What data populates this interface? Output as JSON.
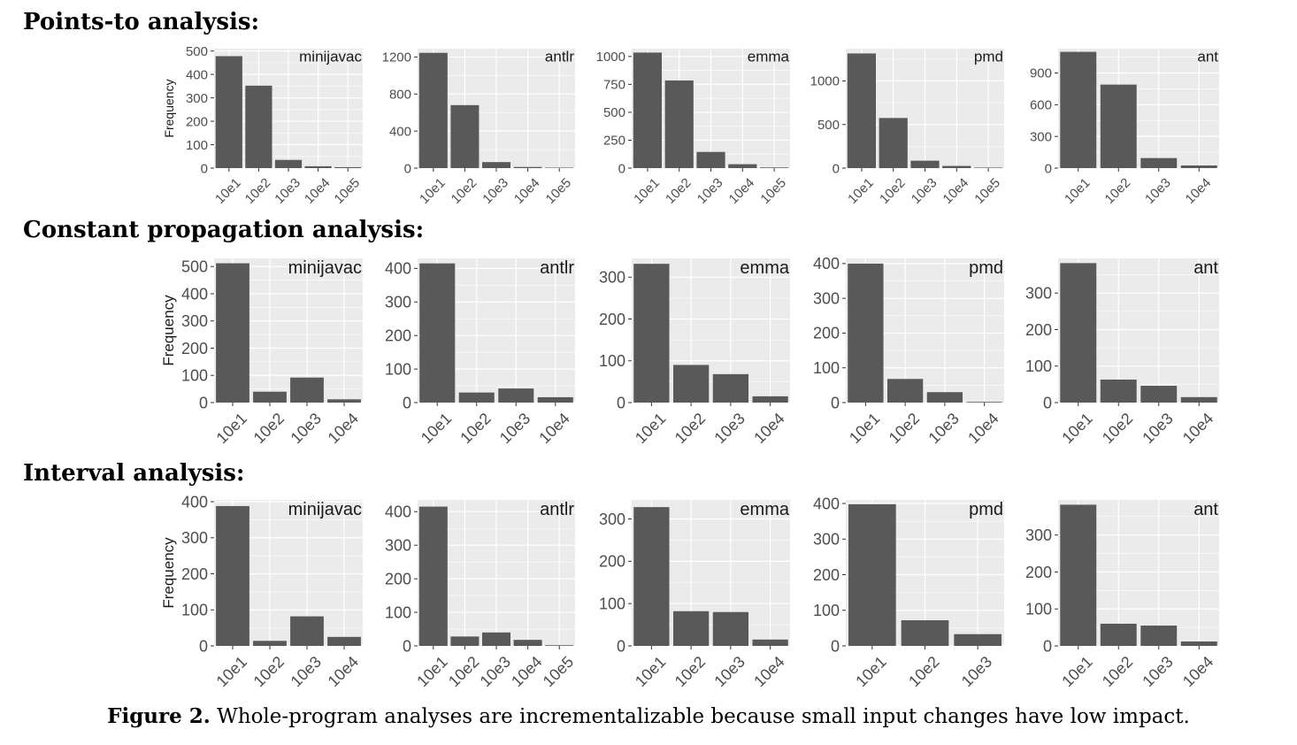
{
  "sections": [
    {
      "title": "Points-to analysis:"
    },
    {
      "title": "Constant propagation analysis:"
    },
    {
      "title": "Interval analysis:"
    }
  ],
  "caption": {
    "label": "Figure 2.",
    "text": "Whole-program analyses are incrementalizable because small input changes have low impact."
  },
  "colors": {
    "panel_bg": "#ebebeb",
    "grid": "#ffffff",
    "bar": "#595959",
    "tick_text": "#4d4d4d"
  },
  "chart_data": [
    {
      "type": "bar",
      "section": "Points-to analysis:",
      "strip": "minijavac",
      "ylabel": "Frequency",
      "categories": [
        "10e1",
        "10e2",
        "10e3",
        "10e4",
        "10e5"
      ],
      "values": [
        478,
        352,
        35,
        8,
        4
      ],
      "ylim": [
        0,
        510
      ],
      "yticks": [
        0,
        100,
        200,
        300,
        400,
        500
      ],
      "legend": "none",
      "grid": true
    },
    {
      "type": "bar",
      "section": "Points-to analysis:",
      "strip": "antlr",
      "ylabel": "",
      "categories": [
        "10e1",
        "10e2",
        "10e3",
        "10e4",
        "10e5"
      ],
      "values": [
        1245,
        680,
        65,
        12,
        5
      ],
      "ylim": [
        0,
        1290
      ],
      "yticks": [
        0,
        400,
        800,
        1200
      ],
      "legend": "none",
      "grid": true
    },
    {
      "type": "bar",
      "section": "Points-to analysis:",
      "strip": "emma",
      "ylabel": "",
      "categories": [
        "10e1",
        "10e2",
        "10e3",
        "10e4",
        "10e5"
      ],
      "values": [
        1035,
        785,
        145,
        35,
        6
      ],
      "ylim": [
        0,
        1070
      ],
      "yticks": [
        0,
        250,
        500,
        750,
        1000
      ],
      "legend": "none",
      "grid": true
    },
    {
      "type": "bar",
      "section": "Points-to analysis:",
      "strip": "pmd",
      "ylabel": "",
      "categories": [
        "10e1",
        "10e2",
        "10e3",
        "10e4",
        "10e5"
      ],
      "values": [
        1315,
        575,
        85,
        25,
        6
      ],
      "ylim": [
        0,
        1370
      ],
      "yticks": [
        0,
        500,
        1000
      ],
      "legend": "none",
      "grid": true
    },
    {
      "type": "bar",
      "section": "Points-to analysis:",
      "strip": "ant",
      "ylabel": "",
      "categories": [
        "10e1",
        "10e2",
        "10e3",
        "10e4"
      ],
      "values": [
        1100,
        790,
        95,
        25
      ],
      "ylim": [
        0,
        1130
      ],
      "yticks": [
        0,
        300,
        600,
        900
      ],
      "legend": "none",
      "grid": true
    },
    {
      "type": "bar",
      "section": "Constant propagation analysis:",
      "strip": "minijavac",
      "ylabel": "Frequency",
      "categories": [
        "10e1",
        "10e2",
        "10e3",
        "10e4"
      ],
      "values": [
        512,
        40,
        92,
        12
      ],
      "ylim": [
        0,
        530
      ],
      "yticks": [
        0,
        100,
        200,
        300,
        400,
        500
      ],
      "legend": "none",
      "grid": true
    },
    {
      "type": "bar",
      "section": "Constant propagation analysis:",
      "strip": "antlr",
      "ylabel": "",
      "categories": [
        "10e1",
        "10e2",
        "10e3",
        "10e4"
      ],
      "values": [
        415,
        30,
        42,
        16
      ],
      "ylim": [
        0,
        430
      ],
      "yticks": [
        0,
        100,
        200,
        300,
        400
      ],
      "legend": "none",
      "grid": true
    },
    {
      "type": "bar",
      "section": "Constant propagation analysis:",
      "strip": "emma",
      "ylabel": "",
      "categories": [
        "10e1",
        "10e2",
        "10e3",
        "10e4"
      ],
      "values": [
        332,
        90,
        68,
        15
      ],
      "ylim": [
        0,
        345
      ],
      "yticks": [
        0,
        100,
        200,
        300
      ],
      "legend": "none",
      "grid": true
    },
    {
      "type": "bar",
      "section": "Constant propagation analysis:",
      "strip": "pmd",
      "ylabel": "",
      "categories": [
        "10e1",
        "10e2",
        "10e3",
        "10e4"
      ],
      "values": [
        400,
        68,
        30,
        2
      ],
      "ylim": [
        0,
        415
      ],
      "yticks": [
        0,
        100,
        200,
        300,
        400
      ],
      "legend": "none",
      "grid": true
    },
    {
      "type": "bar",
      "section": "Constant propagation analysis:",
      "strip": "ant",
      "ylabel": "",
      "categories": [
        "10e1",
        "10e2",
        "10e3",
        "10e4"
      ],
      "values": [
        382,
        63,
        46,
        15
      ],
      "ylim": [
        0,
        395
      ],
      "yticks": [
        0,
        100,
        200,
        300
      ],
      "legend": "none",
      "grid": true
    },
    {
      "type": "bar",
      "section": "Interval analysis:",
      "strip": "minijavac",
      "ylabel": "Frequency",
      "categories": [
        "10e1",
        "10e2",
        "10e3",
        "10e4"
      ],
      "values": [
        388,
        14,
        82,
        25
      ],
      "ylim": [
        0,
        405
      ],
      "yticks": [
        0,
        100,
        200,
        300,
        400
      ],
      "legend": "none",
      "grid": true
    },
    {
      "type": "bar",
      "section": "Interval analysis:",
      "strip": "antlr",
      "ylabel": "",
      "categories": [
        "10e1",
        "10e2",
        "10e3",
        "10e4",
        "10e5"
      ],
      "values": [
        415,
        28,
        40,
        18,
        2
      ],
      "ylim": [
        0,
        435
      ],
      "yticks": [
        0,
        100,
        200,
        300,
        400
      ],
      "legend": "none",
      "grid": true
    },
    {
      "type": "bar",
      "section": "Interval analysis:",
      "strip": "emma",
      "ylabel": "",
      "categories": [
        "10e1",
        "10e2",
        "10e3",
        "10e4"
      ],
      "values": [
        328,
        82,
        80,
        15
      ],
      "ylim": [
        0,
        345
      ],
      "yticks": [
        0,
        100,
        200,
        300
      ],
      "legend": "none",
      "grid": true
    },
    {
      "type": "bar",
      "section": "Interval analysis:",
      "strip": "pmd",
      "ylabel": "",
      "categories": [
        "10e1",
        "10e2",
        "10e3"
      ],
      "values": [
        398,
        72,
        33
      ],
      "ylim": [
        0,
        410
      ],
      "yticks": [
        0,
        100,
        200,
        300,
        400
      ],
      "legend": "none",
      "grid": true
    },
    {
      "type": "bar",
      "section": "Interval analysis:",
      "strip": "ant",
      "ylabel": "",
      "categories": [
        "10e1",
        "10e2",
        "10e3",
        "10e4"
      ],
      "values": [
        382,
        60,
        55,
        12
      ],
      "ylim": [
        0,
        395
      ],
      "yticks": [
        0,
        100,
        200,
        300
      ],
      "legend": "none",
      "grid": true
    }
  ]
}
